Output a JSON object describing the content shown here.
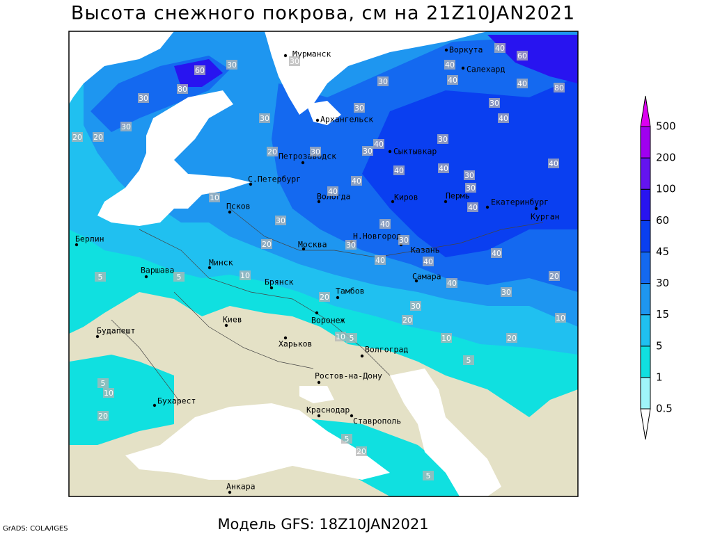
{
  "map": {
    "title": "Высота снежного покрова, см на 21Z10JAN2021",
    "footer": "Модель GFS: 18Z10JAN2021",
    "credit": "GrADS: COLA/IGES",
    "cities": [
      "Мурманск",
      "Воркута",
      "Салехард",
      "Архангельск",
      "Сыктывкар",
      "Петрозаводск",
      "С.Петербург",
      "Вологда",
      "Киров",
      "Пермь",
      "Екатеринбург",
      "Курган",
      "Псков",
      "Н.Новгород",
      "Казань",
      "Москва",
      "Минск",
      "Берлин",
      "Варшава",
      "Брянск",
      "Тамбов",
      "Самара",
      "Киев",
      "Воронеж",
      "Харьков",
      "Будапешт",
      "Волгоград",
      "Ростов-на-Дону",
      "Бухарест",
      "Краснодар",
      "Ставрополь",
      "Анкара"
    ],
    "contour_labels": [
      30,
      60,
      80,
      30,
      30,
      20,
      20,
      30,
      30,
      30,
      40,
      40,
      40,
      60,
      80,
      40,
      30,
      40,
      40,
      30,
      40,
      30,
      40,
      40,
      30,
      30,
      40,
      40,
      40,
      30,
      20,
      30,
      10,
      30,
      20,
      40,
      30,
      30,
      40,
      40,
      40,
      30,
      40,
      20,
      10,
      20,
      10,
      30,
      20,
      20,
      10,
      5,
      5,
      10,
      5,
      5,
      5,
      10,
      20,
      5,
      20,
      5
    ],
    "legend": {
      "levels": [
        0.5,
        1,
        5,
        15,
        30,
        45,
        60,
        100,
        200,
        500
      ],
      "colors": [
        "#ffffff",
        "#a0f5fa",
        "#10e0e0",
        "#20c0f0",
        "#1e96f0",
        "#1469f0",
        "#0a3ff0",
        "#2814f0",
        "#6414f0",
        "#a000f0",
        "#dc00f0"
      ]
    }
  }
}
